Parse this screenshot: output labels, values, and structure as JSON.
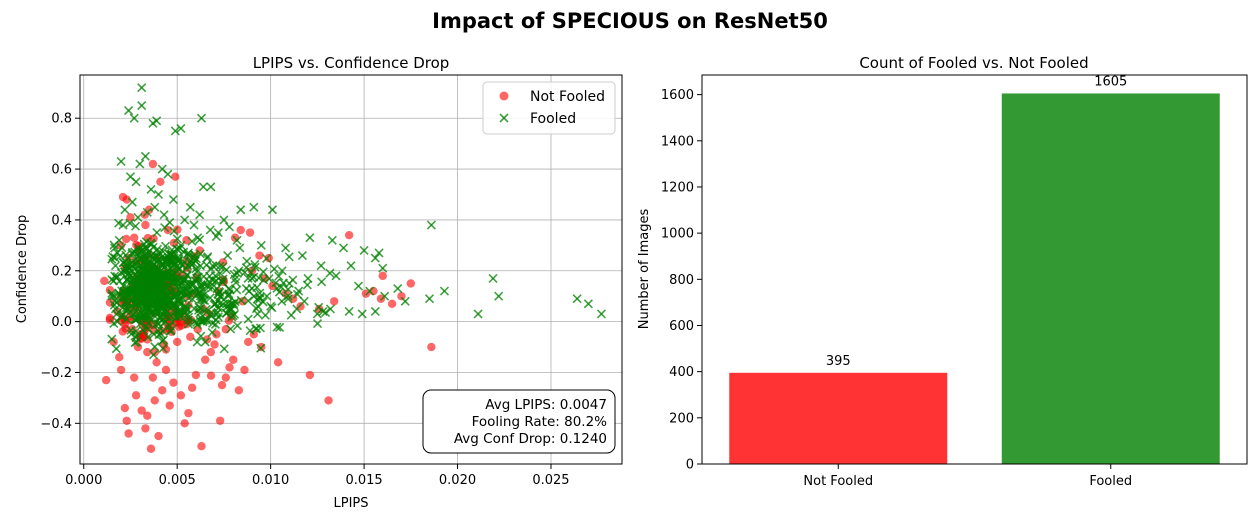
{
  "figure": {
    "suptitle": "Impact of SPECIOUS on ResNet50"
  },
  "chart_data": [
    {
      "type": "scatter",
      "title": "LPIPS vs. Confidence Drop",
      "xlabel": "LPIPS",
      "ylabel": "Confidence Drop",
      "xlim": [
        -0.0002,
        0.0288
      ],
      "ylim": [
        -0.56,
        0.97
      ],
      "xticks": [
        0.0,
        0.005,
        0.01,
        0.015,
        0.02,
        0.025
      ],
      "xtick_labels": [
        "0.000",
        "0.005",
        "0.010",
        "0.015",
        "0.020",
        "0.025"
      ],
      "yticks": [
        -0.4,
        -0.2,
        0.0,
        0.2,
        0.4,
        0.6,
        0.8
      ],
      "ytick_labels": [
        "−0.4",
        "−0.2",
        "0.0",
        "0.2",
        "0.4",
        "0.6",
        "0.8"
      ],
      "grid": true,
      "legend_position": "upper right",
      "series": [
        {
          "name": "Not Fooled",
          "marker": "circle",
          "color": "#ff0000",
          "alpha": 0.6,
          "points": [
            [
              0.0011,
              0.16
            ],
            [
              0.0012,
              -0.23
            ],
            [
              0.0016,
              -0.08
            ],
            [
              0.0019,
              -0.14
            ],
            [
              0.002,
              -0.19
            ],
            [
              0.0022,
              -0.34
            ],
            [
              0.0023,
              -0.39
            ],
            [
              0.0024,
              -0.44
            ],
            [
              0.0021,
              0.49
            ],
            [
              0.0023,
              0.48
            ],
            [
              0.0025,
              0.41
            ],
            [
              0.0027,
              -0.22
            ],
            [
              0.0028,
              -0.29
            ],
            [
              0.0031,
              -0.35
            ],
            [
              0.0033,
              -0.42
            ],
            [
              0.0034,
              -0.37
            ],
            [
              0.0036,
              -0.5
            ],
            [
              0.0038,
              -0.31
            ],
            [
              0.004,
              -0.45
            ],
            [
              0.0042,
              -0.27
            ],
            [
              0.0044,
              -0.19
            ],
            [
              0.0046,
              -0.33
            ],
            [
              0.0048,
              -0.24
            ],
            [
              0.005,
              -0.08
            ],
            [
              0.0052,
              -0.29
            ],
            [
              0.0054,
              -0.4
            ],
            [
              0.0056,
              -0.36
            ],
            [
              0.0058,
              -0.26
            ],
            [
              0.006,
              -0.21
            ],
            [
              0.0063,
              -0.49
            ],
            [
              0.0065,
              -0.15
            ],
            [
              0.0068,
              -0.12
            ],
            [
              0.007,
              -0.09
            ],
            [
              0.0073,
              -0.39
            ],
            [
              0.0074,
              -0.25
            ],
            [
              0.0076,
              -0.22
            ],
            [
              0.0078,
              -0.18
            ],
            [
              0.008,
              -0.15
            ],
            [
              0.0083,
              -0.27
            ],
            [
              0.0086,
              -0.19
            ],
            [
              0.0088,
              -0.08
            ],
            [
              0.0091,
              -0.05
            ],
            [
              0.0095,
              -0.1
            ],
            [
              0.0104,
              -0.16
            ],
            [
              0.0121,
              -0.21
            ],
            [
              0.0131,
              -0.31
            ],
            [
              0.0186,
              -0.1
            ],
            [
              0.0037,
              0.62
            ],
            [
              0.0041,
              0.55
            ],
            [
              0.0049,
              0.57
            ],
            [
              0.0035,
              0.44
            ],
            [
              0.0045,
              0.36
            ],
            [
              0.0055,
              0.32
            ],
            [
              0.0062,
              0.28
            ],
            [
              0.0081,
              0.33
            ],
            [
              0.0084,
              0.36
            ],
            [
              0.0089,
              0.35
            ],
            [
              0.0094,
              0.26
            ],
            [
              0.0099,
              0.25
            ],
            [
              0.0097,
              0.17
            ],
            [
              0.0101,
              0.14
            ],
            [
              0.0108,
              0.11
            ],
            [
              0.0112,
              0.09
            ],
            [
              0.0116,
              0.06
            ],
            [
              0.0126,
              0.05
            ],
            [
              0.0134,
              0.08
            ],
            [
              0.0142,
              0.34
            ],
            [
              0.0151,
              0.11
            ],
            [
              0.0155,
              0.12
            ],
            [
              0.016,
              0.18
            ],
            [
              0.0159,
              0.09
            ],
            [
              0.0165,
              0.07
            ],
            [
              0.017,
              0.1
            ],
            [
              0.0175,
              0.15
            ],
            [
              0.003,
              -0.05
            ],
            [
              0.0034,
              -0.12
            ],
            [
              0.0039,
              -0.16
            ],
            [
              0.0043,
              -0.09
            ],
            [
              0.0047,
              -0.04
            ],
            [
              0.0051,
              -0.02
            ],
            [
              0.0026,
              -0.03
            ],
            [
              0.0029,
              -0.1
            ],
            [
              0.0032,
              -0.06
            ],
            [
              0.0037,
              -0.22
            ],
            [
              0.0044,
              -0.11
            ],
            [
              0.0057,
              -0.06
            ],
            [
              0.0061,
              -0.03
            ],
            [
              0.0066,
              -0.07
            ],
            [
              0.0071,
              -0.05
            ],
            [
              0.0076,
              -0.03
            ],
            [
              0.0025,
              0.02
            ],
            [
              0.0035,
              0.0
            ],
            [
              0.0045,
              0.01
            ],
            [
              0.0055,
              -0.01
            ],
            [
              0.0067,
              0.03
            ],
            [
              0.0079,
              0.02
            ],
            [
              0.0024,
              0.25
            ],
            [
              0.0027,
              0.33
            ],
            [
              0.0033,
              0.38
            ],
            [
              0.0039,
              0.2
            ],
            [
              0.0047,
              0.14
            ],
            [
              0.0053,
              0.18
            ],
            [
              0.0059,
              0.11
            ],
            [
              0.0064,
              0.05
            ],
            [
              0.0018,
              0.04
            ],
            [
              0.002,
              0.1
            ],
            [
              0.0022,
              -0.01
            ],
            [
              0.004,
              0.07
            ],
            [
              0.005,
              0.04
            ],
            [
              0.0072,
              0.12
            ],
            [
              0.0085,
              0.08
            ],
            [
              0.009,
              0.2
            ]
          ]
        },
        {
          "name": "Fooled",
          "marker": "x",
          "color": "#008000",
          "alpha": 0.75,
          "points": [
            [
              0.0031,
              0.92
            ],
            [
              0.0024,
              0.83
            ],
            [
              0.0031,
              0.85
            ],
            [
              0.0027,
              0.8
            ],
            [
              0.0037,
              0.78
            ],
            [
              0.0039,
              0.79
            ],
            [
              0.0049,
              0.75
            ],
            [
              0.0052,
              0.76
            ],
            [
              0.0063,
              0.8
            ],
            [
              0.002,
              0.63
            ],
            [
              0.003,
              0.62
            ],
            [
              0.0033,
              0.65
            ],
            [
              0.0042,
              0.6
            ],
            [
              0.0045,
              0.58
            ],
            [
              0.0064,
              0.53
            ],
            [
              0.0068,
              0.53
            ],
            [
              0.0025,
              0.57
            ],
            [
              0.0028,
              0.55
            ],
            [
              0.0036,
              0.52
            ],
            [
              0.004,
              0.5
            ],
            [
              0.0048,
              0.48
            ],
            [
              0.0057,
              0.45
            ],
            [
              0.0062,
              0.42
            ],
            [
              0.0075,
              0.4
            ],
            [
              0.0084,
              0.44
            ],
            [
              0.0091,
              0.45
            ],
            [
              0.0101,
              0.44
            ],
            [
              0.0186,
              0.38
            ],
            [
              0.0072,
              0.35
            ],
            [
              0.0082,
              0.32
            ],
            [
              0.0095,
              0.3
            ],
            [
              0.0108,
              0.29
            ],
            [
              0.0121,
              0.33
            ],
            [
              0.0133,
              0.32
            ],
            [
              0.0139,
              0.29
            ],
            [
              0.015,
              0.28
            ],
            [
              0.0158,
              0.27
            ],
            [
              0.0117,
              0.26
            ],
            [
              0.0127,
              0.22
            ],
            [
              0.0143,
              0.22
            ],
            [
              0.0156,
              0.25
            ],
            [
              0.016,
              0.21
            ],
            [
              0.012,
              0.17
            ],
            [
              0.0135,
              0.18
            ],
            [
              0.0147,
              0.14
            ],
            [
              0.0153,
              0.12
            ],
            [
              0.0161,
              0.1
            ],
            [
              0.0168,
              0.13
            ],
            [
              0.0172,
              0.08
            ],
            [
              0.0185,
              0.09
            ],
            [
              0.0193,
              0.12
            ],
            [
              0.0211,
              0.03
            ],
            [
              0.0219,
              0.17
            ],
            [
              0.0222,
              0.1
            ],
            [
              0.0264,
              0.09
            ],
            [
              0.027,
              0.07
            ],
            [
              0.0277,
              0.03
            ],
            [
              0.0132,
              0.05
            ],
            [
              0.0142,
              0.04
            ],
            [
              0.0149,
              0.03
            ],
            [
              0.0156,
              0.04
            ],
            [
              0.0125,
              0.03
            ],
            [
              0.0114,
              0.05
            ],
            [
              0.0106,
              0.08
            ],
            [
              0.0098,
              0.1
            ],
            [
              0.01,
              0.06
            ],
            [
              0.011,
              0.15
            ],
            [
              0.0115,
              0.12
            ],
            [
              0.0118,
              0.08
            ],
            [
              0.0128,
              0.04
            ],
            [
              0.0093,
              0.03
            ],
            [
              0.0088,
              0.01
            ],
            [
              0.0079,
              0.05
            ],
            [
              0.0083,
              0.2
            ],
            [
              0.0087,
              0.13
            ],
            [
              0.009,
              0.17
            ],
            [
              0.0066,
              0.25
            ],
            [
              0.0069,
              0.22
            ],
            [
              0.0073,
              0.19
            ],
            [
              0.0077,
              0.26
            ],
            [
              0.0054,
              0.4
            ],
            [
              0.0059,
              0.38
            ],
            [
              0.0061,
              0.33
            ],
            [
              0.0052,
              0.3
            ],
            [
              0.0056,
              0.27
            ],
            [
              0.0046,
              0.39
            ],
            [
              0.0043,
              0.42
            ],
            [
              0.0038,
              0.45
            ],
            [
              0.0034,
              0.43
            ],
            [
              0.0029,
              0.41
            ],
            [
              0.0026,
              0.47
            ],
            [
              0.0022,
              0.44
            ],
            [
              0.0021,
              0.38
            ],
            [
              0.0019,
              0.32
            ],
            [
              0.0018,
              0.27
            ],
            [
              0.0017,
              0.22
            ],
            [
              0.0016,
              0.16
            ],
            [
              0.0016,
              0.1
            ],
            [
              0.0017,
              0.05
            ],
            [
              0.0018,
              0.0
            ],
            [
              0.002,
              0.02
            ],
            [
              0.0023,
              0.01
            ],
            [
              0.0027,
              0.03
            ],
            [
              0.0032,
              0.02
            ]
          ]
        }
      ],
      "annotation": [
        "Avg LPIPS: 0.0047",
        "Fooling Rate: 80.2%",
        "Avg Conf Drop: 0.1240"
      ],
      "annotation_position": "lower right"
    },
    {
      "type": "bar",
      "title": "Count of Fooled vs. Not Fooled",
      "xlabel": "",
      "ylabel": "Number of Images",
      "ylim": [
        0,
        1685
      ],
      "yticks": [
        0,
        200,
        400,
        600,
        800,
        1000,
        1200,
        1400,
        1600
      ],
      "ytick_labels": [
        "0",
        "200",
        "400",
        "600",
        "800",
        "1000",
        "1200",
        "1400",
        "1600"
      ],
      "categories": [
        "Not Fooled",
        "Fooled"
      ],
      "values": [
        395,
        1605
      ],
      "value_labels": [
        "395",
        "1605"
      ],
      "colors": [
        "#ff0000",
        "#008000"
      ],
      "alpha": 0.8,
      "grid": false
    }
  ]
}
